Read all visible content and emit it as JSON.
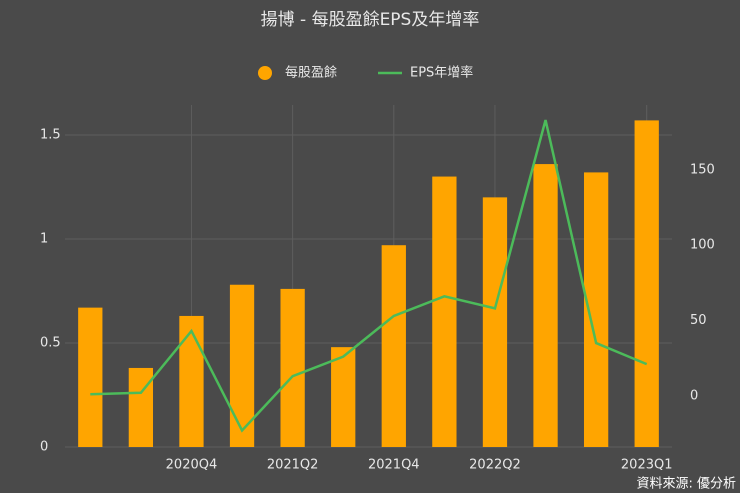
{
  "chart_data": {
    "type": "bar_line",
    "title": "揚博 - 每股盈餘EPS及年增率",
    "categories": [
      null,
      null,
      "2020Q4",
      null,
      "2021Q2",
      null,
      "2021Q4",
      null,
      "2022Q2",
      null,
      null,
      "2023Q1"
    ],
    "series": [
      {
        "name": "每股盈餘",
        "color": "#ffa500",
        "type": "bar",
        "values": [
          0.67,
          0.38,
          0.63,
          0.78,
          0.76,
          0.48,
          0.97,
          1.3,
          1.2,
          1.36,
          1.32,
          1.57
        ]
      },
      {
        "name": "EPS年增率",
        "color": "#4cbb5a",
        "type": "line",
        "axis": "y2",
        "values": [
          1,
          2,
          43,
          -23,
          13,
          26,
          53,
          66,
          58,
          183,
          35,
          21
        ]
      }
    ],
    "ylim": [
      0,
      1.644
    ],
    "yticks": [
      0,
      0.5,
      1,
      1.5
    ],
    "y2lim": [
      -34,
      193
    ],
    "y2ticks": [
      0,
      50,
      100,
      150
    ],
    "grid": true,
    "legend": "top",
    "source": "資料來源: 優分析"
  }
}
